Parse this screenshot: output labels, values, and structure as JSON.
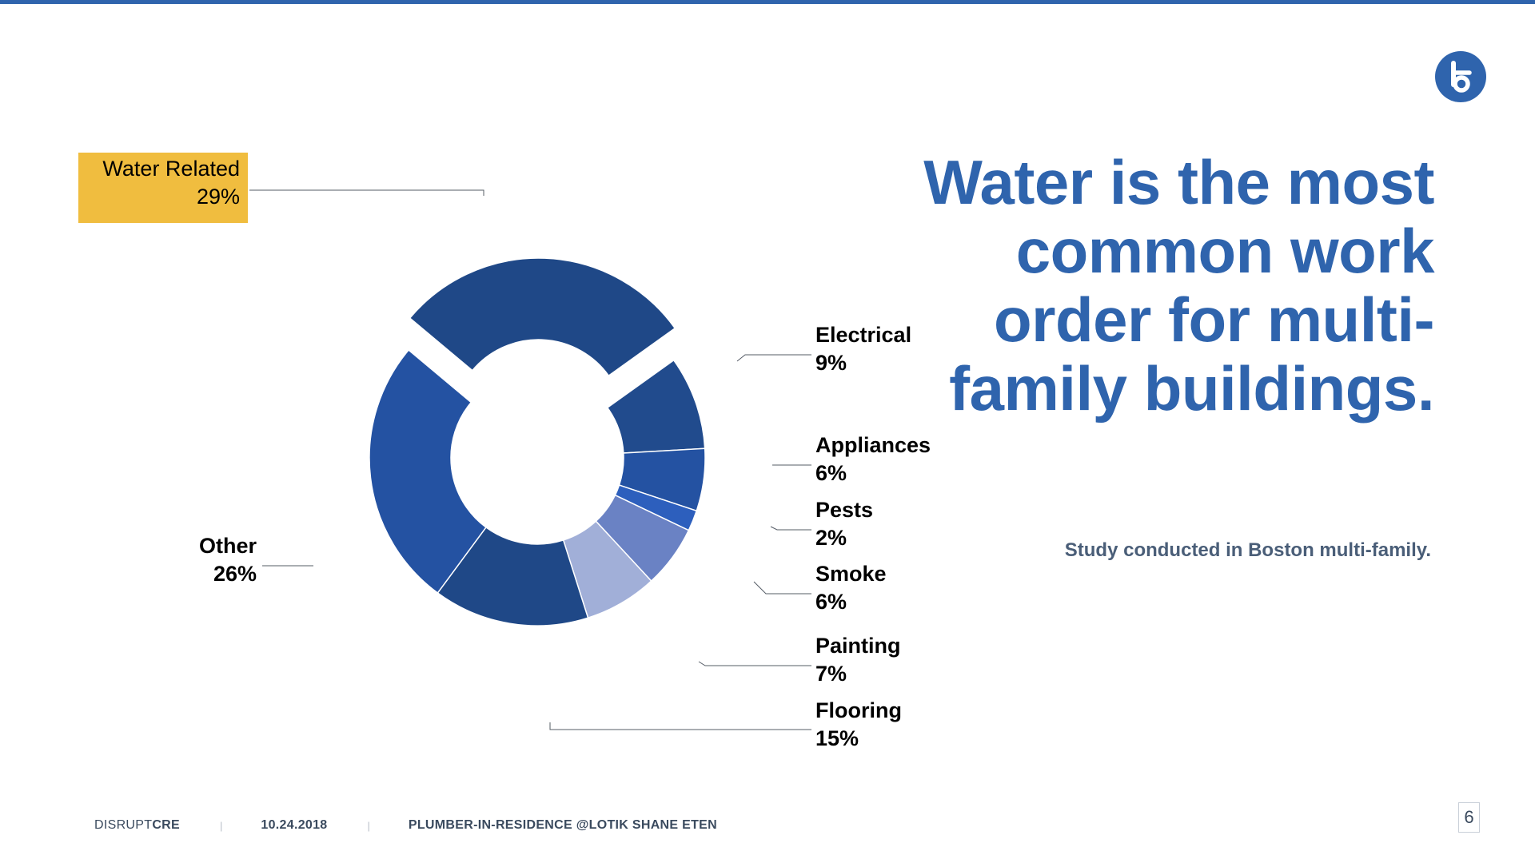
{
  "headline": "Water is the most common work order for multi-family buildings.",
  "subtitle": "Study conducted in Boston multi-family.",
  "footer": {
    "brand_regular": "DISRUPT",
    "brand_bold": "CRE",
    "separator": "|",
    "date": "10.24.2018",
    "byline": "PLUMBER-IN-RESIDENCE @LOTIK SHANE ETEN"
  },
  "page_number": "6",
  "logo_icon": "lotik-logo-icon",
  "colors": {
    "accent": "#2f64ad",
    "highlight": "#f0bd3f",
    "subtitle": "#4a5e78"
  },
  "chart_data": {
    "type": "pie",
    "variant": "donut",
    "title": "",
    "exploded": "Water Related",
    "slices": [
      {
        "label": "Water Related",
        "value": 29,
        "display": "29%",
        "color": "#1f4887"
      },
      {
        "label": "Electrical",
        "value": 9,
        "display": "9%",
        "color": "#214b8d"
      },
      {
        "label": "Appliances",
        "value": 6,
        "display": "6%",
        "color": "#2452a2"
      },
      {
        "label": "Pests",
        "value": 2,
        "display": "2%",
        "color": "#2d5fbd"
      },
      {
        "label": "Smoke",
        "value": 6,
        "display": "6%",
        "color": "#6a82c4"
      },
      {
        "label": "Painting",
        "value": 7,
        "display": "7%",
        "color": "#a1afd8"
      },
      {
        "label": "Flooring",
        "value": 15,
        "display": "15%",
        "color": "#1f4887"
      },
      {
        "label": "Other",
        "value": 26,
        "display": "26%",
        "color": "#2452a2"
      }
    ]
  }
}
